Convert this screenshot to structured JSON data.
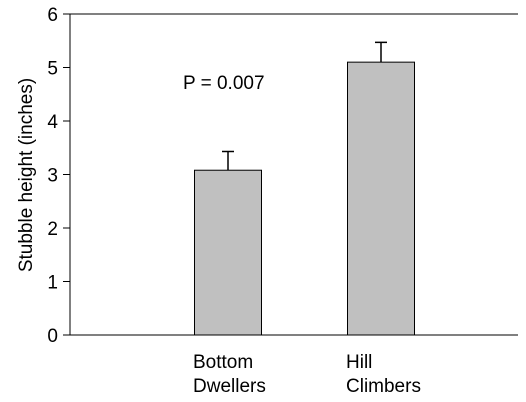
{
  "chart_data": {
    "type": "bar",
    "title": "",
    "xlabel": "",
    "ylabel": "Stubble height (inches)",
    "ylim": [
      0,
      6
    ],
    "yticks": [
      0,
      1,
      2,
      3,
      4,
      5,
      6
    ],
    "categories": [
      [
        "Bottom",
        "Dwellers"
      ],
      [
        "Hill",
        "Climbers"
      ]
    ],
    "values": [
      3.08,
      5.1
    ],
    "error_upper": [
      0.35,
      0.37
    ],
    "annotations": [
      "P = 0.007"
    ],
    "grid": false,
    "legend": "none",
    "colors": {
      "bar_fill": "#c0c0c0",
      "bar_stroke": "#000000",
      "axis": "#000000"
    }
  }
}
